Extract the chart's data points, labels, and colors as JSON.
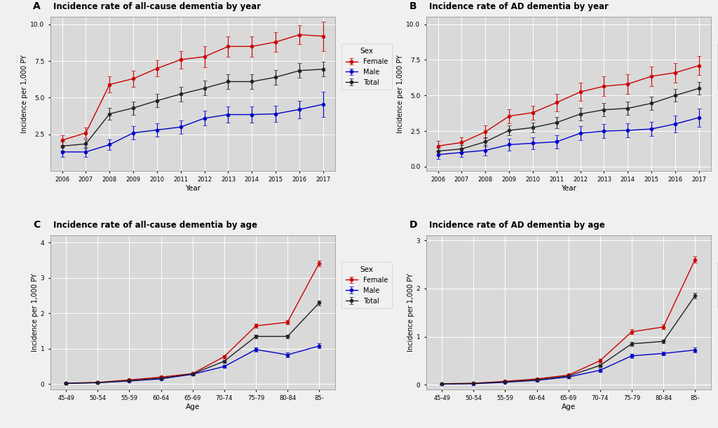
{
  "background_color": "#f0f0f0",
  "plot_bg_color": "#d9d9d9",
  "grid_color": "white",
  "panel_A": {
    "title": "Incidence rate of all-cause dementia by year",
    "label": "A",
    "xlabel": "Year",
    "ylabel": "Incidence per 1,000 PY",
    "xlim": [
      2005.5,
      2017.5
    ],
    "ylim": [
      0,
      10.5
    ],
    "yticks": [
      2.5,
      5.0,
      7.5,
      10.0
    ],
    "xticks": [
      2006,
      2007,
      2008,
      2009,
      2010,
      2011,
      2012,
      2013,
      2014,
      2015,
      2016,
      2017
    ],
    "female_y": [
      2.1,
      2.6,
      5.9,
      6.3,
      7.0,
      7.6,
      7.8,
      8.5,
      8.5,
      8.8,
      9.3,
      9.2
    ],
    "female_err": [
      0.35,
      0.35,
      0.55,
      0.55,
      0.55,
      0.6,
      0.7,
      0.7,
      0.7,
      0.65,
      0.65,
      1.0
    ],
    "male_y": [
      1.3,
      1.3,
      1.8,
      2.6,
      2.8,
      3.0,
      3.6,
      3.85,
      3.85,
      3.9,
      4.2,
      4.55
    ],
    "male_err": [
      0.35,
      0.35,
      0.35,
      0.45,
      0.45,
      0.45,
      0.5,
      0.55,
      0.55,
      0.55,
      0.6,
      0.85
    ],
    "total_y": [
      1.7,
      1.85,
      3.9,
      4.3,
      4.8,
      5.25,
      5.65,
      6.1,
      6.1,
      6.4,
      6.85,
      6.95
    ],
    "total_err": [
      0.3,
      0.3,
      0.4,
      0.45,
      0.45,
      0.5,
      0.5,
      0.5,
      0.5,
      0.5,
      0.5,
      0.5
    ]
  },
  "panel_B": {
    "title": "Incidence rate of AD dementia by year",
    "label": "B",
    "xlabel": "Year",
    "ylabel": "Incidence per 1,000 PY",
    "xlim": [
      2005.5,
      2017.5
    ],
    "ylim": [
      -0.3,
      10.5
    ],
    "yticks": [
      0.0,
      2.5,
      5.0,
      7.5,
      10.0
    ],
    "xticks": [
      2006,
      2007,
      2008,
      2009,
      2010,
      2011,
      2012,
      2013,
      2014,
      2015,
      2016,
      2017
    ],
    "female_y": [
      1.45,
      1.7,
      2.45,
      3.55,
      3.8,
      4.5,
      5.25,
      5.65,
      5.8,
      6.35,
      6.6,
      7.1
    ],
    "female_err": [
      0.35,
      0.35,
      0.45,
      0.5,
      0.5,
      0.6,
      0.65,
      0.7,
      0.7,
      0.7,
      0.7,
      0.65
    ],
    "male_y": [
      0.85,
      1.0,
      1.15,
      1.55,
      1.65,
      1.75,
      2.35,
      2.5,
      2.55,
      2.65,
      3.0,
      3.45
    ],
    "male_err": [
      0.3,
      0.3,
      0.35,
      0.4,
      0.4,
      0.45,
      0.5,
      0.5,
      0.5,
      0.5,
      0.6,
      0.65
    ],
    "total_y": [
      1.1,
      1.25,
      1.75,
      2.55,
      2.75,
      3.1,
      3.7,
      4.0,
      4.1,
      4.45,
      5.0,
      5.5
    ],
    "total_err": [
      0.25,
      0.25,
      0.3,
      0.35,
      0.35,
      0.4,
      0.45,
      0.45,
      0.45,
      0.45,
      0.45,
      0.45
    ]
  },
  "panel_C": {
    "title": "Incidence rate of all-cause dementia by age",
    "label": "C",
    "xlabel": "Age",
    "ylabel": "Incidence per 1,000 PY",
    "xlim": [
      -0.5,
      8.5
    ],
    "ylim": [
      -0.15,
      4.2
    ],
    "yticks": [
      0,
      1,
      2,
      3,
      4
    ],
    "age_labels": [
      "45-49",
      "50-54",
      "55-59",
      "60-64",
      "65-69",
      "70-74",
      "75-79",
      "80-84",
      "85-"
    ],
    "female_y": [
      0.03,
      0.05,
      0.12,
      0.2,
      0.3,
      0.78,
      1.65,
      1.75,
      3.42
    ],
    "female_err": [
      0.01,
      0.01,
      0.02,
      0.02,
      0.03,
      0.05,
      0.06,
      0.06,
      0.08
    ],
    "male_y": [
      0.02,
      0.04,
      0.09,
      0.15,
      0.28,
      0.5,
      0.98,
      0.83,
      1.08
    ],
    "male_err": [
      0.01,
      0.01,
      0.02,
      0.02,
      0.03,
      0.04,
      0.06,
      0.06,
      0.07
    ],
    "total_y": [
      0.025,
      0.045,
      0.1,
      0.17,
      0.29,
      0.65,
      1.35,
      1.35,
      2.3
    ],
    "total_err": [
      0.01,
      0.01,
      0.02,
      0.02,
      0.03,
      0.04,
      0.05,
      0.05,
      0.07
    ]
  },
  "panel_D": {
    "title": "Incidence rate of AD dementia by age",
    "label": "D",
    "xlabel": "Age",
    "ylabel": "Incidence per 1,000 PY",
    "xlim": [
      -0.5,
      8.5
    ],
    "ylim": [
      -0.1,
      3.1
    ],
    "yticks": [
      0,
      1,
      2,
      3
    ],
    "age_labels": [
      "45-49",
      "50-54",
      "55-59",
      "60-64",
      "65-69",
      "70-74",
      "75-79",
      "80-84",
      "85-"
    ],
    "female_y": [
      0.02,
      0.03,
      0.07,
      0.12,
      0.2,
      0.5,
      1.1,
      1.2,
      2.6
    ],
    "female_err": [
      0.01,
      0.01,
      0.015,
      0.02,
      0.02,
      0.04,
      0.05,
      0.05,
      0.07
    ],
    "male_y": [
      0.01,
      0.02,
      0.05,
      0.09,
      0.16,
      0.3,
      0.6,
      0.65,
      0.72
    ],
    "male_err": [
      0.01,
      0.01,
      0.01,
      0.015,
      0.02,
      0.03,
      0.04,
      0.04,
      0.05
    ],
    "total_y": [
      0.015,
      0.025,
      0.06,
      0.1,
      0.18,
      0.4,
      0.85,
      0.9,
      1.85
    ],
    "total_err": [
      0.01,
      0.01,
      0.01,
      0.015,
      0.02,
      0.03,
      0.04,
      0.04,
      0.06
    ]
  },
  "female_color": "#cc0000",
  "male_color": "#0000cc",
  "total_color": "#222222",
  "legend_title": "Sex",
  "legend_female": "Female",
  "legend_male": "Male",
  "legend_total": "Total"
}
